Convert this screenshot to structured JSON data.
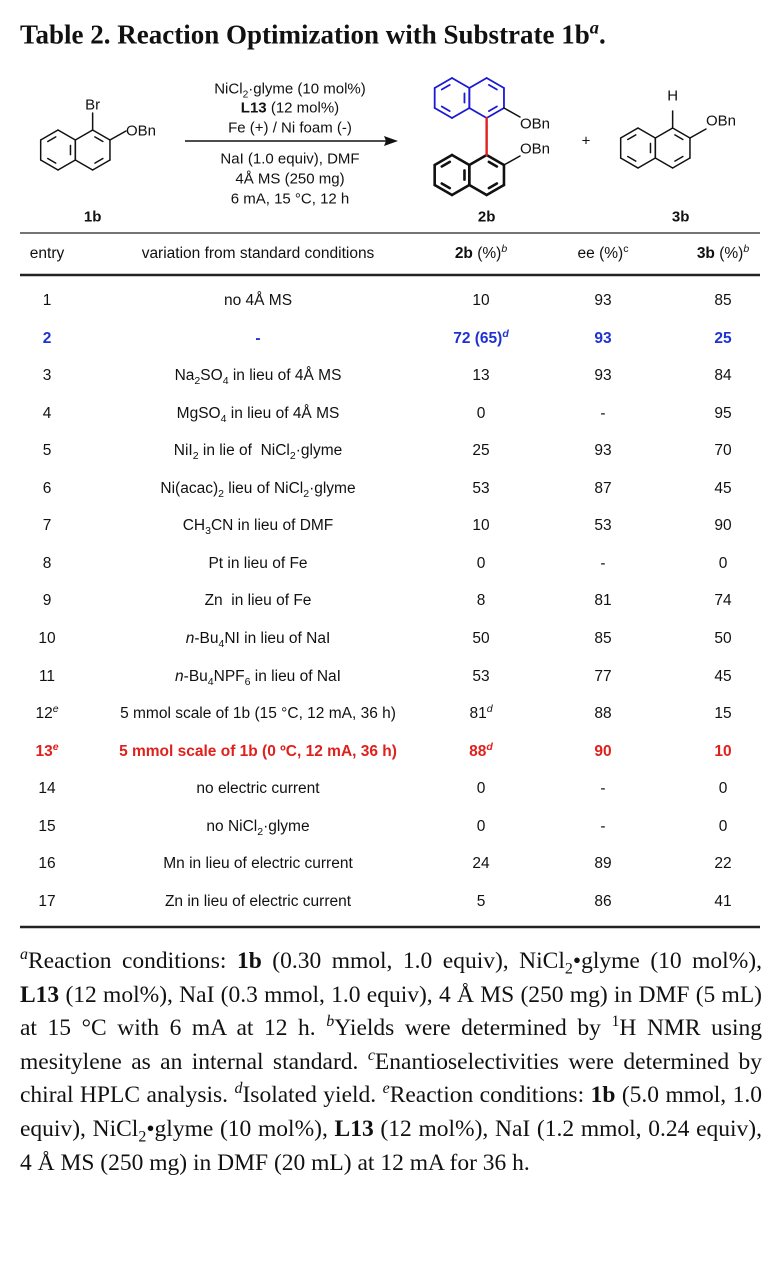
{
  "title": [
    "Table 2. Reaction Optimization with Substrate ",
    {
      "b": "1b"
    },
    {
      "sup": "a"
    },
    "."
  ],
  "scheme": {
    "substrate": {
      "label": "1b",
      "groups": [
        "Br",
        "OBn"
      ]
    },
    "conditions": [
      [
        "NiCl",
        {
          "sub": "2"
        },
        "·glyme (10 mol%)"
      ],
      [
        {
          "b": "L13"
        },
        " (12 mol%)"
      ],
      "Fe (+) / Ni foam (-)",
      "NaI (1.0 equiv), DMF",
      "4Å MS (250 mg)",
      "6 mA, 15 °C, 12 h"
    ],
    "plus": "+",
    "products": [
      {
        "label": "2b",
        "groups": [
          "OBn",
          "OBn"
        ]
      },
      {
        "label": "3b",
        "groups": [
          "H",
          "OBn"
        ]
      }
    ]
  },
  "table": {
    "header": [
      "entry",
      "variation from standard conditions",
      [
        {
          "b": "2b"
        },
        " (%)",
        {
          "sup": "b"
        }
      ],
      [
        "ee (%)",
        {
          "sup": "c"
        }
      ],
      [
        {
          "b": "3b"
        },
        " (%)",
        {
          "sup": "b"
        }
      ]
    ],
    "rows": [
      {
        "cells": [
          1,
          "no 4Å MS",
          10,
          93,
          85
        ]
      },
      {
        "cells": [
          2,
          "-",
          [
            "72 (65)",
            {
              "sup": "d"
            }
          ],
          93,
          25
        ],
        "color": "#1e32d2",
        "bold": true
      },
      {
        "cells": [
          3,
          [
            "Na",
            {
              "sub": "2"
            },
            "SO",
            {
              "sub": "4"
            },
            " in lieu of 4Å MS"
          ],
          13,
          93,
          84
        ]
      },
      {
        "cells": [
          4,
          [
            "MgSO",
            {
              "sub": "4"
            },
            " in lieu of 4Å MS"
          ],
          0,
          "-",
          95
        ]
      },
      {
        "cells": [
          5,
          [
            "NiI",
            {
              "sub": "2"
            },
            " in lie of  NiCl",
            {
              "sub": "2"
            },
            "·glyme"
          ],
          25,
          93,
          70
        ]
      },
      {
        "cells": [
          6,
          [
            "Ni(acac)",
            {
              "sub": "2"
            },
            " lieu of NiCl",
            {
              "sub": "2"
            },
            "·glyme"
          ],
          53,
          87,
          45
        ]
      },
      {
        "cells": [
          7,
          [
            "CH",
            {
              "sub": "3"
            },
            "CN in lieu of DMF"
          ],
          10,
          53,
          90
        ]
      },
      {
        "cells": [
          8,
          "Pt in lieu of Fe",
          0,
          "-",
          0
        ]
      },
      {
        "cells": [
          9,
          "Zn  in lieu of Fe",
          8,
          81,
          74
        ]
      },
      {
        "cells": [
          10,
          [
            {
              "i": "n"
            },
            "-Bu",
            {
              "sub": "4"
            },
            "NI in lieu of NaI"
          ],
          50,
          85,
          50
        ]
      },
      {
        "cells": [
          11,
          [
            {
              "i": "n"
            },
            "-Bu",
            {
              "sub": "4"
            },
            "NPF",
            {
              "sub": "6"
            },
            " in lieu of NaI"
          ],
          53,
          77,
          45
        ]
      },
      {
        "cells": [
          [
            "12",
            {
              "sup": "e"
            }
          ],
          "5 mmol scale of 1b (15 °C, 12 mA, 36 h)",
          [
            "81",
            {
              "sup": "d"
            }
          ],
          88,
          15
        ]
      },
      {
        "cells": [
          [
            "13",
            {
              "sup": "e"
            }
          ],
          "5 mmol scale of 1b (0 ºC, 12 mA, 36 h)",
          [
            "88",
            {
              "sup": "d"
            }
          ],
          90,
          10
        ],
        "color": "#e0201c",
        "bold": true
      },
      {
        "cells": [
          14,
          "no electric current",
          0,
          "-",
          0
        ]
      },
      {
        "cells": [
          15,
          [
            "no NiCl",
            {
              "sub": "2"
            },
            "·glyme"
          ],
          0,
          "-",
          0
        ]
      },
      {
        "cells": [
          16,
          "Mn in lieu of electric current",
          24,
          89,
          22
        ]
      },
      {
        "cells": [
          17,
          "Zn in lieu of electric current",
          5,
          86,
          41
        ]
      }
    ]
  },
  "footnote": [
    {
      "sup": "a"
    },
    "Reaction conditions: ",
    {
      "b": "1b"
    },
    " (0.30 mmol, 1.0 equiv), NiCl",
    {
      "sub": "2"
    },
    "•glyme (10 mol%), ",
    {
      "b": "L13"
    },
    " (12 mol%), NaI (0.3 mmol, 1.0 equiv), 4 Å MS (250 mg) in DMF (5 mL) at 15 °C with 6 mA at 12 h. ",
    {
      "sup": "b"
    },
    "Yields were determined by ",
    {
      "sup": "1"
    },
    "H NMR using mesitylene as an internal standard. ",
    {
      "sup": "c"
    },
    "Enantioselectivities were determined by chiral HPLC analysis. ",
    {
      "sup": "d"
    },
    "Isolated yield. ",
    {
      "sup": "e"
    },
    "Reaction conditions: ",
    {
      "b": "1b"
    },
    " (5.0 mmol, 1.0 equiv), NiCl",
    {
      "sub": "2"
    },
    "•glyme (10 mol%), ",
    {
      "b": "L13"
    },
    " (12 mol%), NaI (1.2 mmol, 0.24 equiv), 4 Å MS (250 mg) in DMF (20 mL) at 12 mA for 36 h."
  ]
}
